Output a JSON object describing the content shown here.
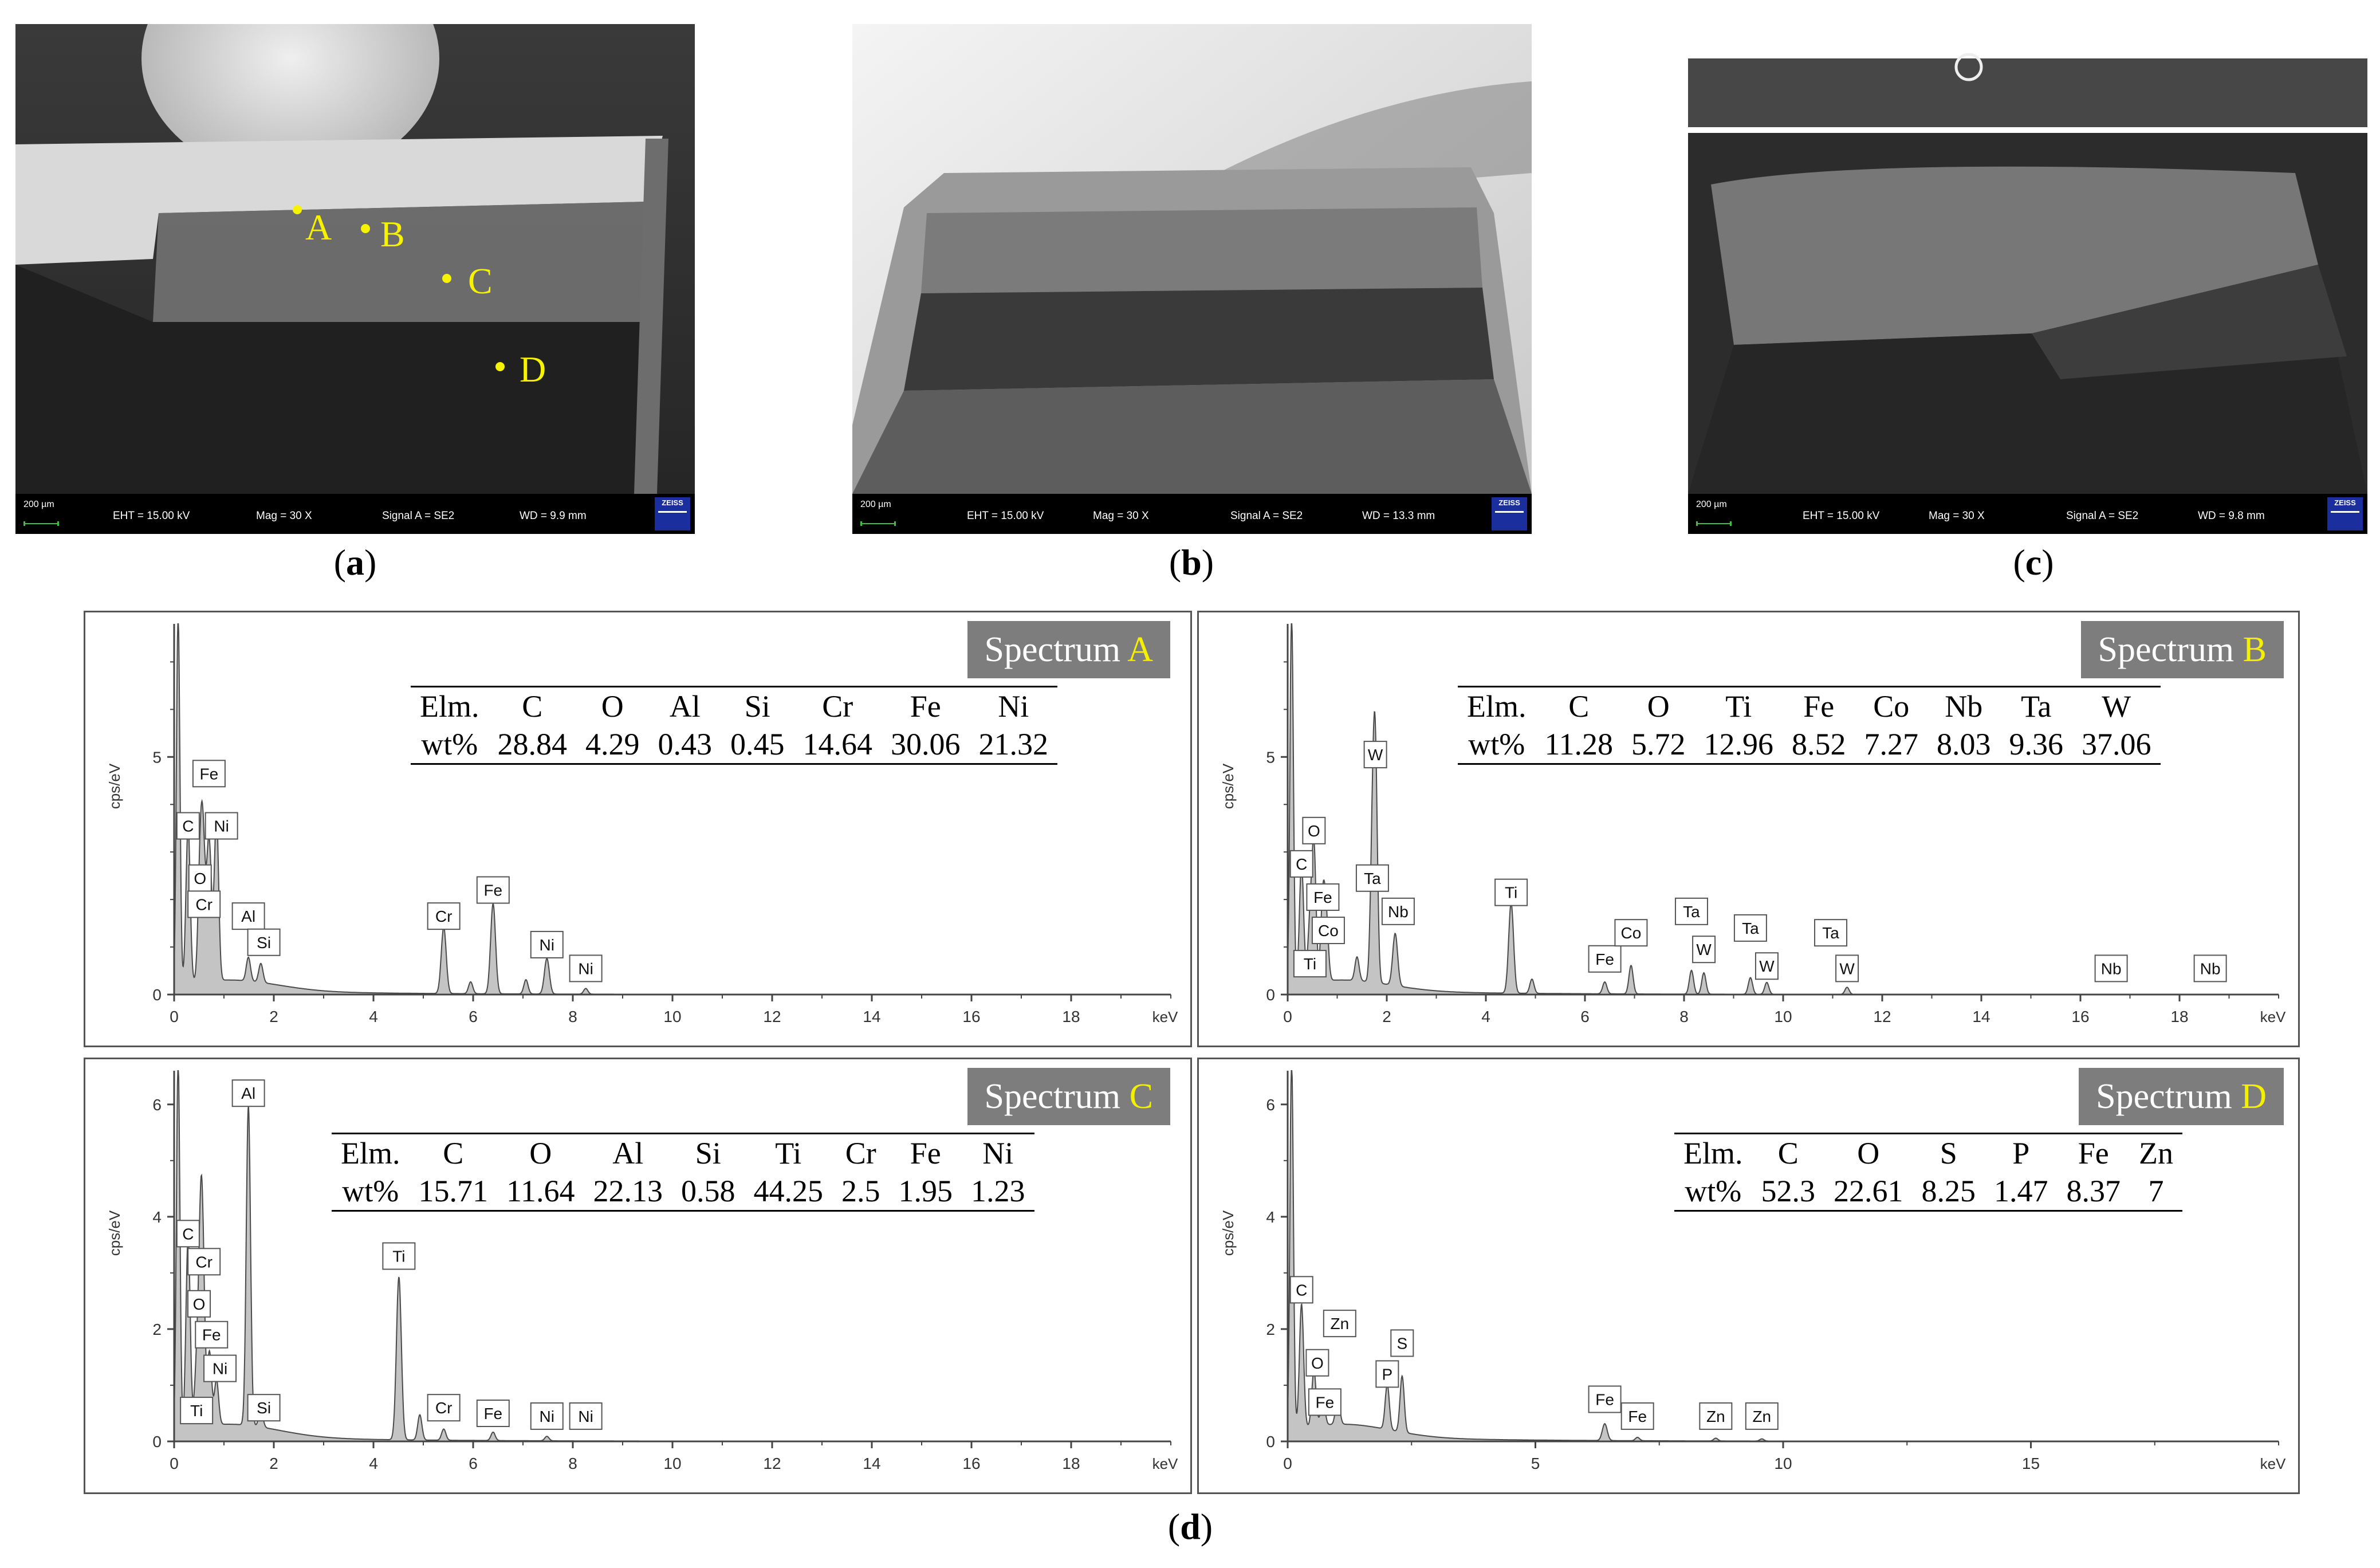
{
  "captions": {
    "a": "a",
    "b": "b",
    "c": "c",
    "d": "d"
  },
  "sem": [
    {
      "id": "a",
      "scale": "200 µm",
      "eht": "EHT = 15.00 kV",
      "mag": "Mag =    30 X",
      "signal": "Signal A = SE2",
      "wd": "WD =  9.9 mm",
      "logo": "ZEISS",
      "points": [
        "A",
        "B",
        "C",
        "D"
      ]
    },
    {
      "id": "b",
      "scale": "200 µm",
      "eht": "EHT = 15.00 kV",
      "mag": "Mag =    30 X",
      "signal": "Signal A = SE2",
      "wd": "WD = 13.3 mm",
      "logo": "ZEISS",
      "points": []
    },
    {
      "id": "c",
      "scale": "200 µm",
      "eht": "EHT = 15.00 kV",
      "mag": "Mag =    30 X",
      "signal": "Signal A = SE2",
      "wd": "WD =  9.8 mm",
      "logo": "ZEISS",
      "points": []
    }
  ],
  "chart_data": [
    {
      "type": "area",
      "title_prefix": "Spectrum",
      "title_id": "A",
      "ylabel": "cps/eV",
      "xlabel": "keV",
      "xlim": [
        0,
        20
      ],
      "xticks": [
        0,
        2,
        4,
        6,
        8,
        10,
        12,
        14,
        16,
        18
      ],
      "ylim": [
        0,
        7.8
      ],
      "yticks": [
        0,
        5
      ],
      "table": {
        "header": [
          "Elm.",
          "C",
          "O",
          "Al",
          "Si",
          "Cr",
          "Fe",
          "Ni"
        ],
        "values": [
          "wt%",
          "28.84",
          "4.29",
          "0.43",
          "0.45",
          "14.64",
          "30.06",
          "21.32"
        ]
      },
      "peaks": [
        {
          "x": 0.08,
          "y": 7.8,
          "w": 0.05
        },
        {
          "x": 0.28,
          "y": 3.3,
          "w": 0.06
        },
        {
          "x": 0.52,
          "y": 2.2,
          "w": 0.06
        },
        {
          "x": 0.58,
          "y": 2.6,
          "w": 0.06
        },
        {
          "x": 0.7,
          "y": 3.0,
          "w": 0.07
        },
        {
          "x": 0.85,
          "y": 3.5,
          "w": 0.06
        },
        {
          "x": 1.49,
          "y": 0.5,
          "w": 0.06
        },
        {
          "x": 1.74,
          "y": 0.4,
          "w": 0.06
        },
        {
          "x": 5.41,
          "y": 1.4,
          "w": 0.07
        },
        {
          "x": 5.95,
          "y": 0.25,
          "w": 0.06
        },
        {
          "x": 6.4,
          "y": 1.9,
          "w": 0.07
        },
        {
          "x": 7.06,
          "y": 0.3,
          "w": 0.06
        },
        {
          "x": 7.48,
          "y": 0.75,
          "w": 0.07
        },
        {
          "x": 8.26,
          "y": 0.12,
          "w": 0.06
        }
      ],
      "labels": [
        {
          "text": "C",
          "x": 0.28,
          "y": 3.55
        },
        {
          "text": "Fe",
          "x": 0.7,
          "y": 4.65
        },
        {
          "text": "Ni",
          "x": 0.95,
          "y": 3.55
        },
        {
          "text": "O",
          "x": 0.52,
          "y": 2.45
        },
        {
          "text": "Cr",
          "x": 0.6,
          "y": 1.9
        },
        {
          "text": "Al",
          "x": 1.49,
          "y": 1.65
        },
        {
          "text": "Si",
          "x": 1.8,
          "y": 1.1
        },
        {
          "text": "Cr",
          "x": 5.41,
          "y": 1.65
        },
        {
          "text": "Fe",
          "x": 6.4,
          "y": 2.2
        },
        {
          "text": "Ni",
          "x": 7.48,
          "y": 1.05
        },
        {
          "text": "Ni",
          "x": 8.26,
          "y": 0.55
        }
      ]
    },
    {
      "type": "area",
      "title_prefix": "Spectrum",
      "title_id": "B",
      "ylabel": "cps/eV",
      "xlabel": "keV",
      "xlim": [
        0,
        20
      ],
      "xticks": [
        0,
        2,
        4,
        6,
        8,
        10,
        12,
        14,
        16,
        18
      ],
      "ylim": [
        0,
        7.8
      ],
      "yticks": [
        0,
        5
      ],
      "table": {
        "header": [
          "Elm.",
          "C",
          "O",
          "Ti",
          "Fe",
          "Co",
          "Nb",
          "Ta",
          "W"
        ],
        "values": [
          "wt%",
          "11.28",
          "5.72",
          "12.96",
          "8.52",
          "7.27",
          "8.03",
          "9.36",
          "37.06"
        ]
      },
      "peaks": [
        {
          "x": 0.08,
          "y": 7.8,
          "w": 0.05
        },
        {
          "x": 0.28,
          "y": 2.5,
          "w": 0.06
        },
        {
          "x": 0.45,
          "y": 1.2,
          "w": 0.06
        },
        {
          "x": 0.53,
          "y": 2.8,
          "w": 0.06
        },
        {
          "x": 0.71,
          "y": 1.7,
          "w": 0.06
        },
        {
          "x": 0.78,
          "y": 1.2,
          "w": 0.06
        },
        {
          "x": 1.4,
          "y": 0.5,
          "w": 0.06
        },
        {
          "x": 1.71,
          "y": 2.6,
          "w": 0.06
        },
        {
          "x": 1.77,
          "y": 4.5,
          "w": 0.06
        },
        {
          "x": 2.17,
          "y": 1.1,
          "w": 0.07
        },
        {
          "x": 4.51,
          "y": 1.9,
          "w": 0.07
        },
        {
          "x": 4.93,
          "y": 0.3,
          "w": 0.06
        },
        {
          "x": 6.4,
          "y": 0.25,
          "w": 0.06
        },
        {
          "x": 6.93,
          "y": 0.6,
          "w": 0.06
        },
        {
          "x": 8.15,
          "y": 0.5,
          "w": 0.06
        },
        {
          "x": 8.4,
          "y": 0.45,
          "w": 0.06
        },
        {
          "x": 9.34,
          "y": 0.35,
          "w": 0.06
        },
        {
          "x": 9.67,
          "y": 0.25,
          "w": 0.06
        },
        {
          "x": 11.29,
          "y": 0.15,
          "w": 0.06
        }
      ],
      "labels": [
        {
          "text": "C",
          "x": 0.28,
          "y": 2.75
        },
        {
          "text": "O",
          "x": 0.53,
          "y": 3.45
        },
        {
          "text": "Fe",
          "x": 0.71,
          "y": 2.05
        },
        {
          "text": "Co",
          "x": 0.82,
          "y": 1.35
        },
        {
          "text": "Ti",
          "x": 0.45,
          "y": 0.65
        },
        {
          "text": "W",
          "x": 1.77,
          "y": 5.05
        },
        {
          "text": "Ta",
          "x": 1.71,
          "y": 2.45
        },
        {
          "text": "Nb",
          "x": 2.23,
          "y": 1.75
        },
        {
          "text": "Ti",
          "x": 4.51,
          "y": 2.15
        },
        {
          "text": "Fe",
          "x": 6.4,
          "y": 0.75
        },
        {
          "text": "Co",
          "x": 6.93,
          "y": 1.3
        },
        {
          "text": "Ta",
          "x": 8.15,
          "y": 1.75
        },
        {
          "text": "W",
          "x": 8.4,
          "y": 0.95
        },
        {
          "text": "Ta",
          "x": 9.34,
          "y": 1.4
        },
        {
          "text": "W",
          "x": 9.67,
          "y": 0.6
        },
        {
          "text": "Ta",
          "x": 10.96,
          "y": 1.3
        },
        {
          "text": "W",
          "x": 11.29,
          "y": 0.55
        },
        {
          "text": "Nb",
          "x": 16.62,
          "y": 0.55
        },
        {
          "text": "Nb",
          "x": 18.62,
          "y": 0.55
        }
      ]
    },
    {
      "type": "area",
      "title_prefix": "Spectrum",
      "title_id": "C",
      "ylabel": "cps/eV",
      "xlabel": "keV",
      "xlim": [
        0,
        20
      ],
      "xticks": [
        0,
        2,
        4,
        6,
        8,
        10,
        12,
        14,
        16,
        18
      ],
      "ylim": [
        0,
        6.6
      ],
      "yticks": [
        0,
        2,
        4,
        6
      ],
      "table": {
        "header": [
          "Elm.",
          "C",
          "O",
          "Al",
          "Si",
          "Ti",
          "Cr",
          "Fe",
          "Ni"
        ],
        "values": [
          "wt%",
          "15.71",
          "11.64",
          "22.13",
          "0.58",
          "44.25",
          "2.5",
          "1.95",
          "1.23"
        ]
      },
      "peaks": [
        {
          "x": 0.08,
          "y": 6.6,
          "w": 0.05
        },
        {
          "x": 0.28,
          "y": 3.4,
          "w": 0.06
        },
        {
          "x": 0.45,
          "y": 1.0,
          "w": 0.06
        },
        {
          "x": 0.53,
          "y": 3.0,
          "w": 0.06
        },
        {
          "x": 0.58,
          "y": 2.2,
          "w": 0.06
        },
        {
          "x": 0.71,
          "y": 1.3,
          "w": 0.06
        },
        {
          "x": 0.85,
          "y": 0.8,
          "w": 0.06
        },
        {
          "x": 1.49,
          "y": 5.7,
          "w": 0.06
        },
        {
          "x": 1.74,
          "y": 0.3,
          "w": 0.06
        },
        {
          "x": 4.51,
          "y": 2.9,
          "w": 0.07
        },
        {
          "x": 4.93,
          "y": 0.45,
          "w": 0.06
        },
        {
          "x": 5.41,
          "y": 0.2,
          "w": 0.06
        },
        {
          "x": 6.4,
          "y": 0.15,
          "w": 0.06
        },
        {
          "x": 7.48,
          "y": 0.08,
          "w": 0.06
        }
      ],
      "labels": [
        {
          "text": "C",
          "x": 0.28,
          "y": 3.7
        },
        {
          "text": "Cr",
          "x": 0.6,
          "y": 3.2
        },
        {
          "text": "O",
          "x": 0.5,
          "y": 2.45
        },
        {
          "text": "Fe",
          "x": 0.75,
          "y": 1.9
        },
        {
          "text": "Ni",
          "x": 0.92,
          "y": 1.3
        },
        {
          "text": "Ti",
          "x": 0.45,
          "y": 0.55
        },
        {
          "text": "Al",
          "x": 1.49,
          "y": 6.2
        },
        {
          "text": "Si",
          "x": 1.8,
          "y": 0.6
        },
        {
          "text": "Ti",
          "x": 4.51,
          "y": 3.3
        },
        {
          "text": "Cr",
          "x": 5.41,
          "y": 0.6
        },
        {
          "text": "Fe",
          "x": 6.4,
          "y": 0.5
        },
        {
          "text": "Ni",
          "x": 7.48,
          "y": 0.45
        },
        {
          "text": "Ni",
          "x": 8.26,
          "y": 0.45
        }
      ]
    },
    {
      "type": "area",
      "title_prefix": "Spectrum",
      "title_id": "D",
      "ylabel": "cps/eV",
      "xlabel": "keV",
      "xlim": [
        0,
        20
      ],
      "xticks": [
        0,
        5,
        10,
        15
      ],
      "ylim": [
        0,
        6.6
      ],
      "yticks": [
        0,
        2,
        4,
        6
      ],
      "table": {
        "header": [
          "Elm.",
          "C",
          "O",
          "S",
          "P",
          "Fe",
          "Zn"
        ],
        "values": [
          "wt%",
          "52.3",
          "22.61",
          "8.25",
          "1.47",
          "8.37",
          "7"
        ]
      },
      "peaks": [
        {
          "x": 0.08,
          "y": 6.6,
          "w": 0.05
        },
        {
          "x": 0.28,
          "y": 2.2,
          "w": 0.06
        },
        {
          "x": 0.53,
          "y": 1.0,
          "w": 0.06
        },
        {
          "x": 0.71,
          "y": 0.5,
          "w": 0.06
        },
        {
          "x": 1.01,
          "y": 0.5,
          "w": 0.06
        },
        {
          "x": 2.01,
          "y": 0.8,
          "w": 0.06
        },
        {
          "x": 2.31,
          "y": 1.0,
          "w": 0.06
        },
        {
          "x": 6.4,
          "y": 0.3,
          "w": 0.07
        },
        {
          "x": 7.06,
          "y": 0.06,
          "w": 0.06
        },
        {
          "x": 8.64,
          "y": 0.05,
          "w": 0.06
        },
        {
          "x": 9.57,
          "y": 0.04,
          "w": 0.06
        }
      ],
      "labels": [
        {
          "text": "C",
          "x": 0.28,
          "y": 2.7
        },
        {
          "text": "Zn",
          "x": 1.05,
          "y": 2.1
        },
        {
          "text": "O",
          "x": 0.6,
          "y": 1.4
        },
        {
          "text": "Fe",
          "x": 0.75,
          "y": 0.7
        },
        {
          "text": "P",
          "x": 2.01,
          "y": 1.2
        },
        {
          "text": "S",
          "x": 2.31,
          "y": 1.75
        },
        {
          "text": "Fe",
          "x": 6.4,
          "y": 0.75
        },
        {
          "text": "Fe",
          "x": 7.06,
          "y": 0.45
        },
        {
          "text": "Zn",
          "x": 8.64,
          "y": 0.45
        },
        {
          "text": "Zn",
          "x": 9.57,
          "y": 0.45
        }
      ]
    }
  ]
}
